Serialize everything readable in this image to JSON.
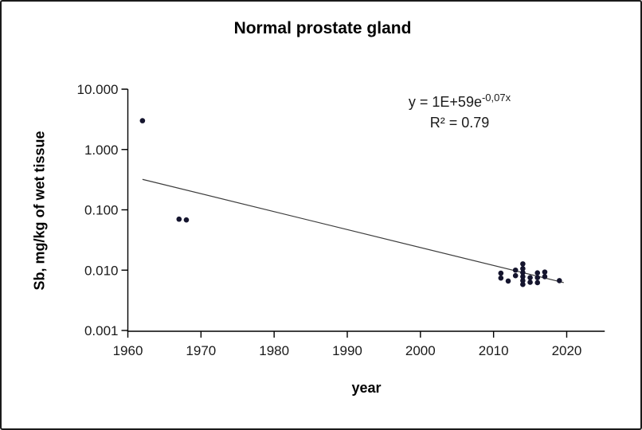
{
  "title": "Normal prostate gland",
  "annotation": {
    "equation_base": "y = 1E+59e",
    "equation_exponent": "-0,07x",
    "r_squared": "R² = 0.79"
  },
  "colors": {
    "point": "#15152e",
    "trendline": "#3c3c3c",
    "axis": "#000000",
    "background": "#ffffff",
    "border": "#1a1a1a"
  },
  "chart_data": {
    "type": "scatter",
    "title": "Normal prostate gland",
    "xlabel": "year",
    "ylabel": "Sb, mg/kg of wet tissue",
    "y_scale": "log",
    "grid": false,
    "legend": false,
    "xlim": [
      1960,
      2025.2
    ],
    "ylim": [
      0.001,
      10
    ],
    "x_ticks": [
      1960,
      1970,
      1980,
      1990,
      2000,
      2010,
      2020
    ],
    "x_tick_labels": [
      "1960",
      "1970",
      "1980",
      "1990",
      "2000",
      "2010",
      "2020"
    ],
    "y_ticks": [
      10,
      1,
      0.1,
      0.01,
      0.001
    ],
    "y_tick_labels": [
      "10.000",
      "1.000",
      "0.100",
      "0.010",
      "0.001"
    ],
    "points": [
      {
        "x": 1962,
        "y": 3.0
      },
      {
        "x": 1967,
        "y": 0.07
      },
      {
        "x": 1968,
        "y": 0.068
      },
      {
        "x": 2011,
        "y": 0.0089
      },
      {
        "x": 2011,
        "y": 0.0074
      },
      {
        "x": 2012,
        "y": 0.0066
      },
      {
        "x": 2013,
        "y": 0.01
      },
      {
        "x": 2013,
        "y": 0.0081
      },
      {
        "x": 2014,
        "y": 0.0127
      },
      {
        "x": 2014,
        "y": 0.0106
      },
      {
        "x": 2014,
        "y": 0.0091
      },
      {
        "x": 2014,
        "y": 0.0078
      },
      {
        "x": 2014,
        "y": 0.0067
      },
      {
        "x": 2014,
        "y": 0.0058
      },
      {
        "x": 2015,
        "y": 0.0075
      },
      {
        "x": 2015,
        "y": 0.0063
      },
      {
        "x": 2016,
        "y": 0.009
      },
      {
        "x": 2016,
        "y": 0.0075
      },
      {
        "x": 2016,
        "y": 0.0062
      },
      {
        "x": 2017,
        "y": 0.0093
      },
      {
        "x": 2017,
        "y": 0.0078
      },
      {
        "x": 2019,
        "y": 0.0067
      }
    ],
    "trendline": {
      "x1": 1962,
      "y1": 0.32,
      "x2": 2019.6,
      "y2": 0.0062
    }
  }
}
